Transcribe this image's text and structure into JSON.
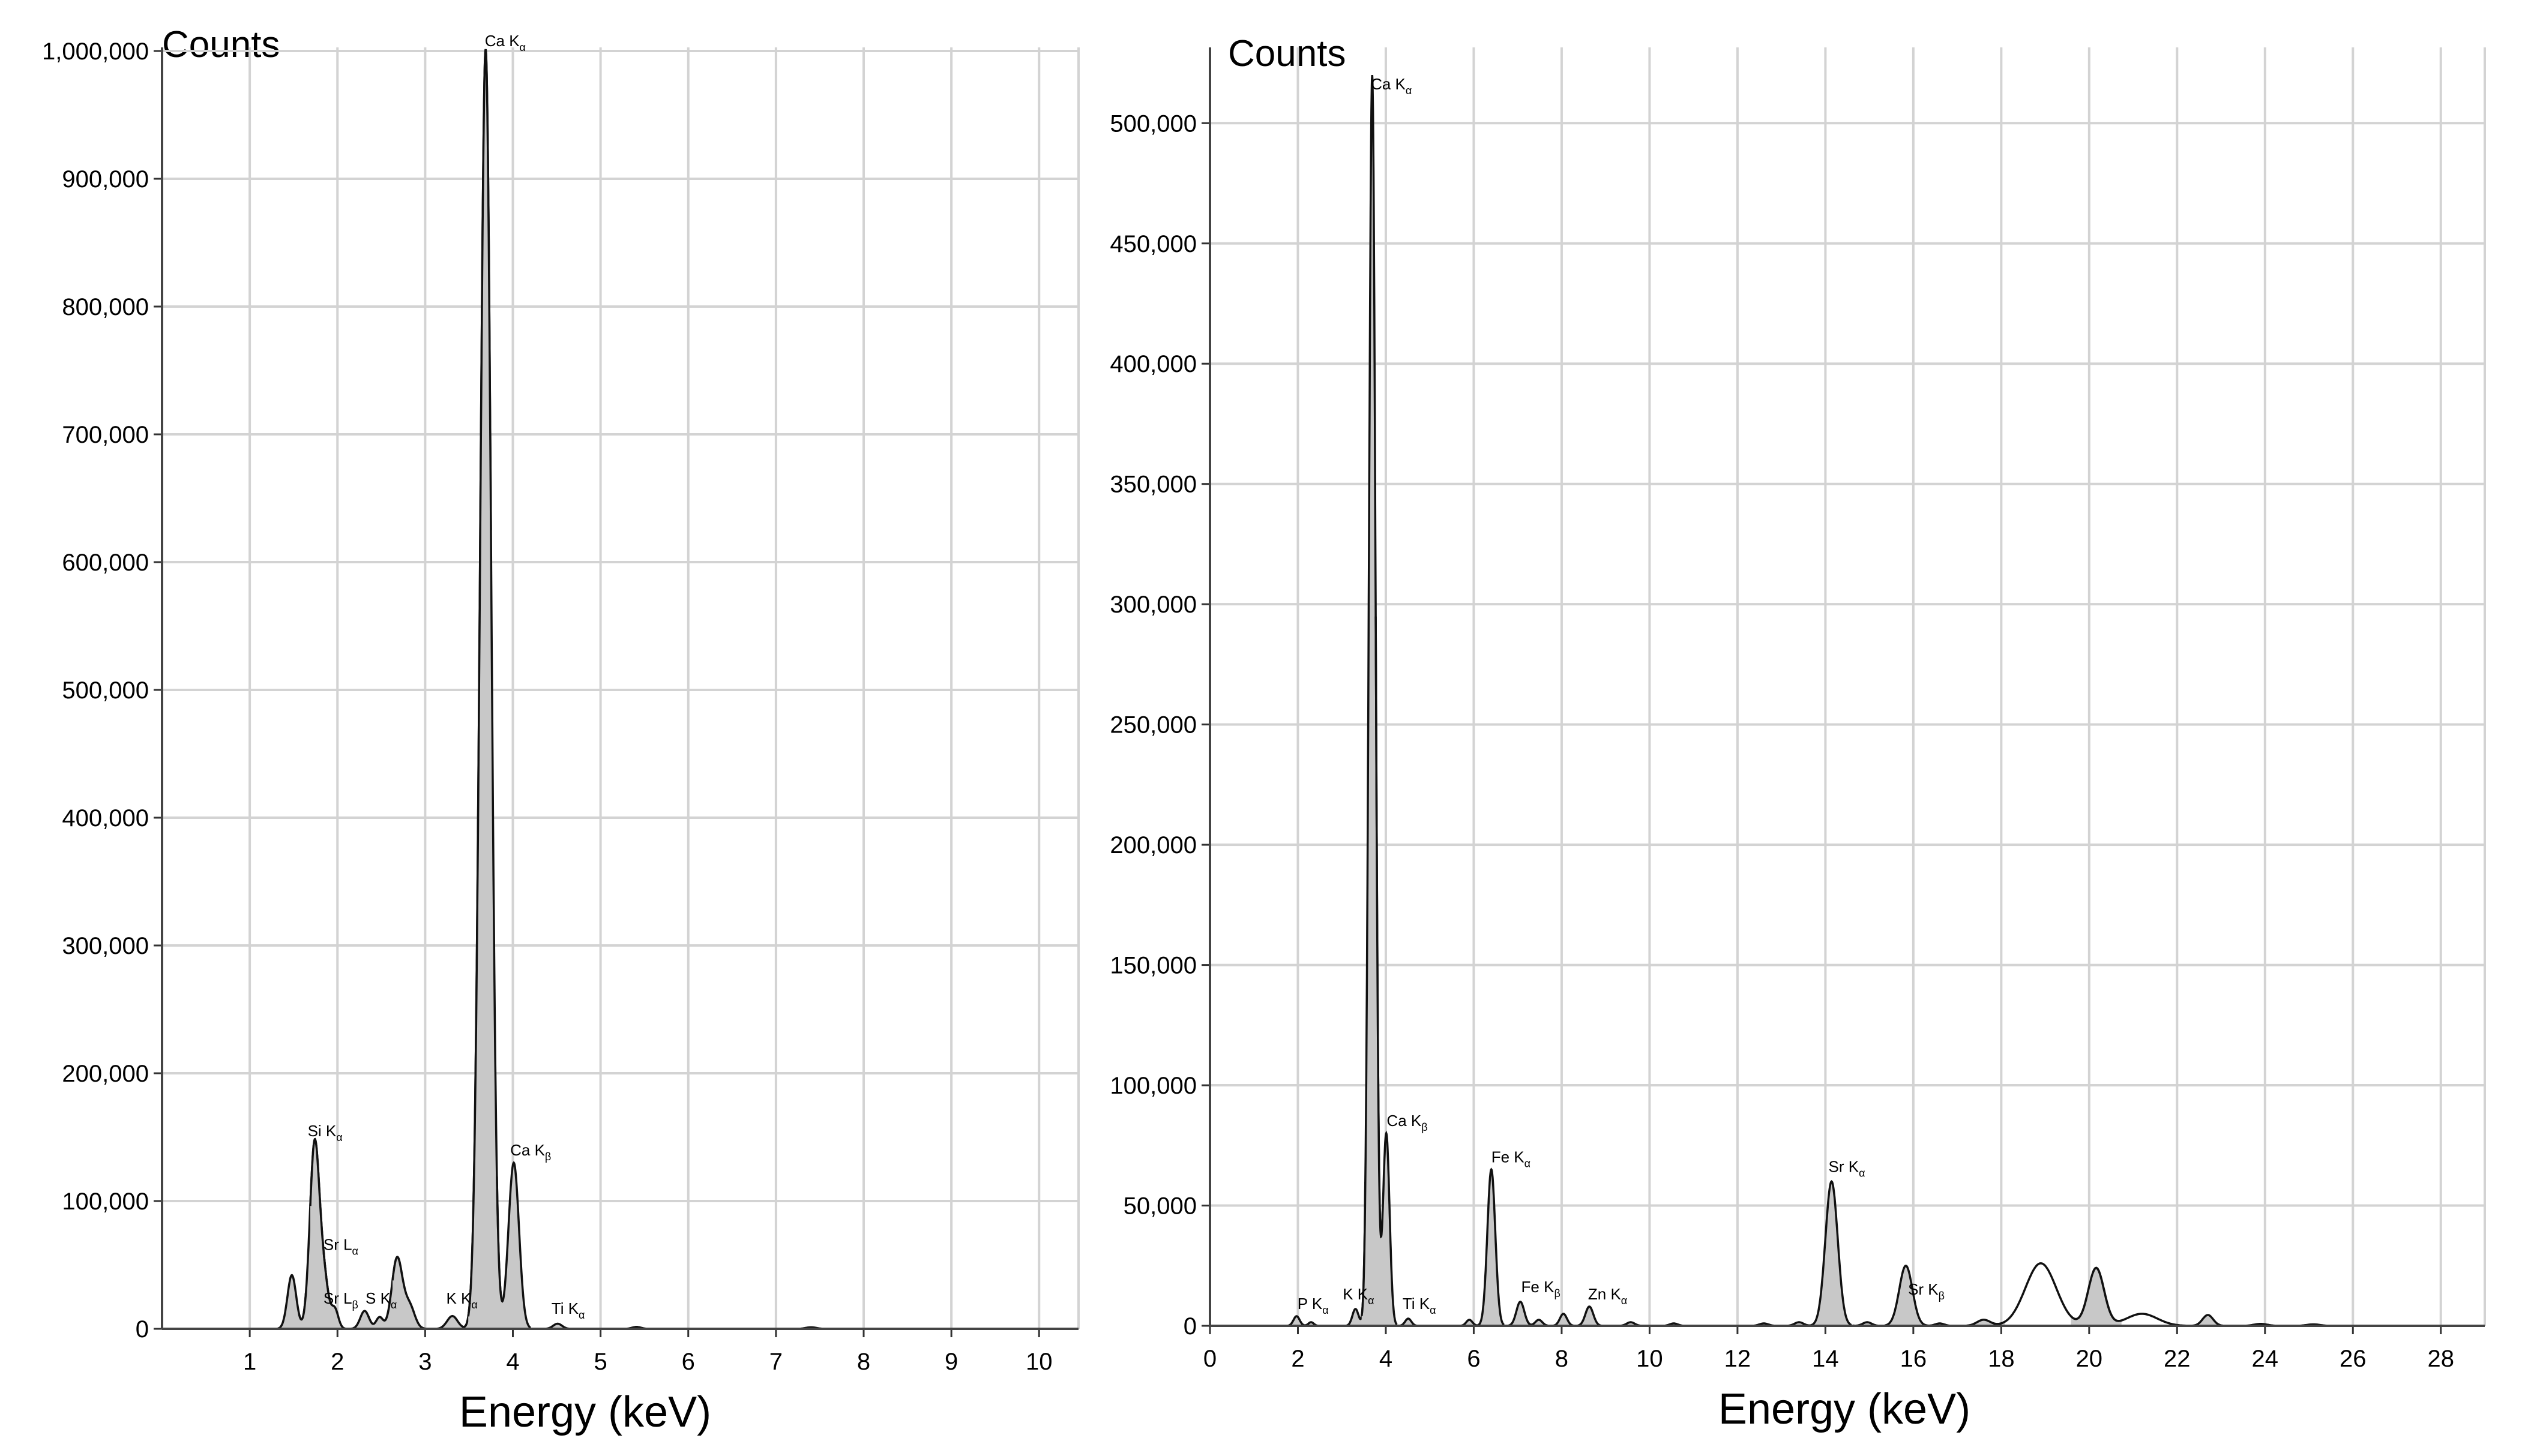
{
  "chart_data": [
    {
      "type": "area",
      "ytitle": "Counts",
      "xlabel": "Energy (keV)",
      "xlim": [
        0,
        10.45
      ],
      "ylim": [
        0,
        1000000
      ],
      "xticks": [
        1,
        2,
        3,
        4,
        5,
        6,
        7,
        8,
        9,
        10
      ],
      "xtick_labels": [
        "1",
        "2",
        "3",
        "4",
        "5",
        "6",
        "7",
        "8",
        "9",
        "10"
      ],
      "yticks": [
        0,
        100000,
        200000,
        300000,
        400000,
        500000,
        600000,
        700000,
        800000,
        900000,
        1000000
      ],
      "ytick_labels": [
        "0",
        "100,000",
        "200,000",
        "300,000",
        "400,000",
        "500,000",
        "600,000",
        "700,000",
        "800,000",
        "900,000",
        "1,000,000"
      ],
      "grid": true,
      "peaks": [
        {
          "x": 1.48,
          "y": 42000,
          "w": 0.05
        },
        {
          "x": 1.74,
          "y": 145000,
          "w": 0.055
        },
        {
          "x": 1.85,
          "y": 35000,
          "w": 0.05
        },
        {
          "x": 1.97,
          "y": 15000,
          "w": 0.04
        },
        {
          "x": 2.31,
          "y": 14000,
          "w": 0.05
        },
        {
          "x": 2.48,
          "y": 9000,
          "w": 0.04
        },
        {
          "x": 2.68,
          "y": 55000,
          "w": 0.06
        },
        {
          "x": 2.82,
          "y": 18000,
          "w": 0.06
        },
        {
          "x": 3.31,
          "y": 10000,
          "w": 0.06
        },
        {
          "x": 3.59,
          "y": 25000,
          "w": 0.05
        },
        {
          "x": 3.69,
          "y": 998000,
          "w": 0.062
        },
        {
          "x": 4.01,
          "y": 130000,
          "w": 0.06
        },
        {
          "x": 4.51,
          "y": 4000,
          "w": 0.05
        },
        {
          "x": 5.41,
          "y": 1500,
          "w": 0.05
        },
        {
          "x": 7.4,
          "y": 1200,
          "w": 0.06
        }
      ],
      "labels": [
        {
          "element": "Si",
          "line": "K",
          "sub": "α",
          "x": 1.66,
          "y": 147000
        },
        {
          "element": "Sr",
          "line": "L",
          "sub": "α",
          "x": 1.84,
          "y": 58000
        },
        {
          "element": "Sr",
          "line": "L",
          "sub": "β",
          "x": 1.84,
          "y": 16000
        },
        {
          "element": "S",
          "line": "K",
          "sub": "α",
          "x": 2.32,
          "y": 16000
        },
        {
          "element": "K",
          "line": "K",
          "sub": "α",
          "x": 3.24,
          "y": 16000
        },
        {
          "element": "Ca",
          "line": "K",
          "sub": "α",
          "x": 3.68,
          "y": 1000000
        },
        {
          "element": "Ca",
          "line": "K",
          "sub": "β",
          "x": 3.97,
          "y": 132000
        },
        {
          "element": "Ti",
          "line": "K",
          "sub": "α",
          "x": 4.44,
          "y": 8000
        }
      ]
    },
    {
      "type": "area",
      "ytitle": "Counts",
      "xlabel": "Energy (keV)",
      "xlim": [
        0,
        29
      ],
      "ylim": [
        0,
        530000
      ],
      "xticks": [
        0,
        2,
        4,
        6,
        8,
        10,
        12,
        14,
        16,
        18,
        20,
        22,
        24,
        26,
        28
      ],
      "xtick_labels": [
        "0",
        "2",
        "4",
        "6",
        "8",
        "10",
        "12",
        "14",
        "16",
        "18",
        "20",
        "22",
        "24",
        "26",
        "28"
      ],
      "yticks": [
        0,
        50000,
        100000,
        150000,
        200000,
        250000,
        300000,
        350000,
        400000,
        450000,
        500000
      ],
      "ytick_labels": [
        "0",
        "50,000",
        "100,000",
        "150,000",
        "200,000",
        "250,000",
        "300,000",
        "350,000",
        "400,000",
        "450,000",
        "500,000"
      ],
      "grid": true,
      "peaks": [
        {
          "x": 1.97,
          "y": 4000,
          "w": 0.07,
          "shaded": true
        },
        {
          "x": 2.3,
          "y": 1500,
          "w": 0.06,
          "shaded": true
        },
        {
          "x": 3.31,
          "y": 7000,
          "w": 0.07,
          "shaded": true
        },
        {
          "x": 3.69,
          "y": 520000,
          "w": 0.075,
          "shaded": true
        },
        {
          "x": 4.01,
          "y": 80000,
          "w": 0.075,
          "shaded": true
        },
        {
          "x": 4.51,
          "y": 3000,
          "w": 0.07,
          "shaded": true
        },
        {
          "x": 5.9,
          "y": 2500,
          "w": 0.07,
          "shaded": true
        },
        {
          "x": 6.4,
          "y": 65000,
          "w": 0.09,
          "shaded": true
        },
        {
          "x": 7.06,
          "y": 10000,
          "w": 0.09,
          "shaded": true
        },
        {
          "x": 7.48,
          "y": 2500,
          "w": 0.08,
          "shaded": true
        },
        {
          "x": 8.04,
          "y": 5000,
          "w": 0.08,
          "shaded": true
        },
        {
          "x": 8.63,
          "y": 8000,
          "w": 0.09,
          "shaded": true
        },
        {
          "x": 9.57,
          "y": 1500,
          "w": 0.09,
          "shaded": true
        },
        {
          "x": 10.55,
          "y": 1000,
          "w": 0.09,
          "shaded": true
        },
        {
          "x": 12.6,
          "y": 1000,
          "w": 0.1,
          "shaded": true
        },
        {
          "x": 13.4,
          "y": 1500,
          "w": 0.1,
          "shaded": true
        },
        {
          "x": 14.14,
          "y": 60000,
          "w": 0.14,
          "shaded": true
        },
        {
          "x": 14.95,
          "y": 1500,
          "w": 0.1,
          "shaded": true
        },
        {
          "x": 15.83,
          "y": 25000,
          "w": 0.15,
          "shaded": true
        },
        {
          "x": 16.6,
          "y": 1000,
          "w": 0.1,
          "shaded": true
        },
        {
          "x": 17.6,
          "y": 2500,
          "w": 0.15,
          "shaded": true
        },
        {
          "x": 18.9,
          "y": 26000,
          "w": 0.35,
          "shaded": false
        },
        {
          "x": 20.16,
          "y": 24000,
          "w": 0.18,
          "shaded": true
        },
        {
          "x": 21.2,
          "y": 5000,
          "w": 0.35,
          "shaded": false
        },
        {
          "x": 22.7,
          "y": 4500,
          "w": 0.12,
          "shaded": true
        },
        {
          "x": 23.9,
          "y": 800,
          "w": 0.15,
          "shaded": true
        },
        {
          "x": 25.1,
          "y": 600,
          "w": 0.15,
          "shaded": true
        }
      ],
      "labels": [
        {
          "element": "P",
          "line": "K",
          "sub": "α",
          "x": 1.99,
          "y": 5000
        },
        {
          "element": "K",
          "line": "K",
          "sub": "α",
          "x": 3.02,
          "y": 9000
        },
        {
          "element": "Ca",
          "line": "K",
          "sub": "α",
          "x": 3.66,
          "y": 512000
        },
        {
          "element": "Ca",
          "line": "K",
          "sub": "β",
          "x": 4.02,
          "y": 81000
        },
        {
          "element": "Ti",
          "line": "K",
          "sub": "α",
          "x": 4.38,
          "y": 5000
        },
        {
          "element": "Fe",
          "line": "K",
          "sub": "α",
          "x": 6.4,
          "y": 66000
        },
        {
          "element": "Fe",
          "line": "K",
          "sub": "β",
          "x": 7.08,
          "y": 12000
        },
        {
          "element": "Zn",
          "line": "K",
          "sub": "α",
          "x": 8.6,
          "y": 9000
        },
        {
          "element": "Sr",
          "line": "K",
          "sub": "α",
          "x": 14.07,
          "y": 62000
        },
        {
          "element": "Sr",
          "line": "K",
          "sub": "β",
          "x": 15.88,
          "y": 11000
        }
      ]
    }
  ]
}
